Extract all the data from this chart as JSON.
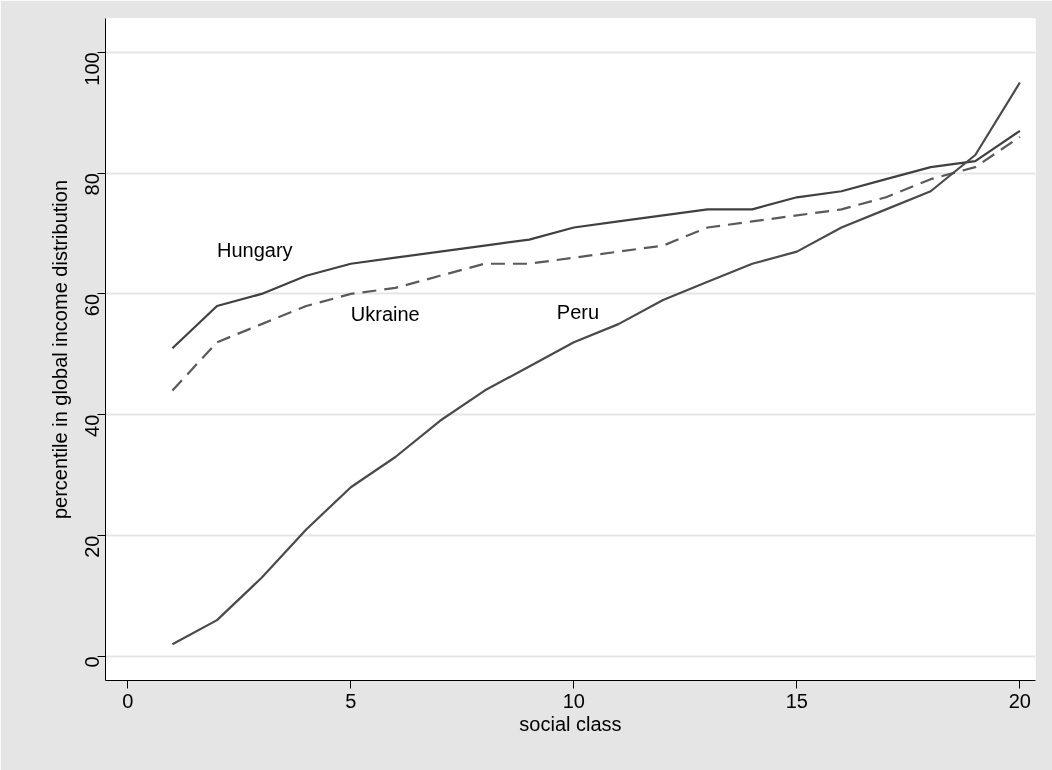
{
  "chart_data": {
    "type": "line",
    "xlabel": "social class",
    "ylabel": "percentile in global income distribution",
    "x": [
      1,
      2,
      3,
      4,
      5,
      6,
      7,
      8,
      9,
      10,
      11,
      12,
      13,
      14,
      15,
      16,
      17,
      18,
      19,
      20
    ],
    "series": [
      {
        "name": "Hungary",
        "color": "#404040",
        "line_style": "solid",
        "values": [
          51,
          58,
          60,
          63,
          65,
          66,
          67,
          68,
          69,
          71,
          72,
          73,
          74,
          74,
          76,
          77,
          79,
          81,
          82,
          87
        ]
      },
      {
        "name": "Ukraine",
        "color": "#5a5a5a",
        "line_style": "dashed",
        "values": [
          44,
          52,
          55,
          58,
          60,
          61,
          63,
          65,
          65,
          66,
          67,
          68,
          71,
          72,
          73,
          74,
          76,
          79,
          81,
          86
        ]
      },
      {
        "name": "Peru",
        "color": "#4a4a4a",
        "line_style": "solid",
        "values": [
          2,
          6,
          13,
          21,
          28,
          33,
          39,
          44,
          48,
          52,
          55,
          59,
          62,
          65,
          67,
          71,
          74,
          77,
          83,
          95
        ]
      }
    ],
    "xlim": [
      -0.5,
      20.35
    ],
    "ylim": [
      -4,
      105.6
    ],
    "xticks": [
      0,
      5,
      10,
      15,
      20
    ],
    "yticks": [
      0,
      20,
      40,
      60,
      80,
      100
    ],
    "grid": "y",
    "legend": false,
    "marker": "none"
  }
}
